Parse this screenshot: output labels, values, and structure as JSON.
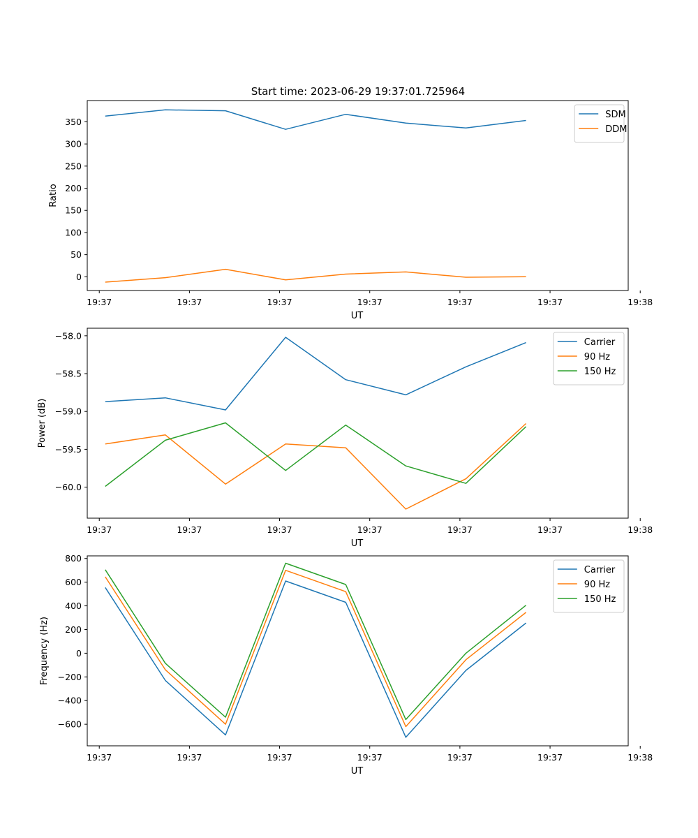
{
  "figure_title": "Start time: 2023-06-29 19:37:01.725964",
  "colors": {
    "blue": "#1f77b4",
    "orange": "#ff7f0e",
    "green": "#2ca02c"
  },
  "chart_data": [
    {
      "type": "line",
      "title": "Start time: 2023-06-29 19:37:01.725964",
      "xlabel": "UT",
      "ylabel": "Ratio",
      "x": [
        1,
        2,
        3,
        4,
        5,
        6,
        7,
        8
      ],
      "xlim": [
        0.7,
        9.7
      ],
      "xticks": [
        0.9,
        2.4,
        3.9,
        5.4,
        6.9,
        8.4,
        9.9
      ],
      "xtick_labels": [
        "19:37",
        "19:37",
        "19:37",
        "19:37",
        "19:37",
        "19:37",
        "19:38"
      ],
      "ylim": [
        -31,
        398
      ],
      "yticks": [
        0,
        50,
        100,
        150,
        200,
        250,
        300,
        350
      ],
      "ytick_labels": [
        "0",
        "50",
        "100",
        "150",
        "200",
        "250",
        "300",
        "350"
      ],
      "legend": "upper right",
      "series": [
        {
          "name": "SDM",
          "color": "#1f77b4",
          "values": [
            363,
            377,
            375,
            333,
            367,
            347,
            336,
            353
          ]
        },
        {
          "name": "DDM",
          "color": "#ff7f0e",
          "values": [
            -12,
            -2,
            17,
            -7,
            6,
            11,
            -1,
            0
          ]
        }
      ]
    },
    {
      "type": "line",
      "title": "",
      "xlabel": "UT",
      "ylabel": "Power (dB)",
      "x": [
        1,
        2,
        3,
        4,
        5,
        6,
        7,
        8
      ],
      "xlim": [
        0.7,
        9.7
      ],
      "xticks": [
        0.9,
        2.4,
        3.9,
        5.4,
        6.9,
        8.4,
        9.9
      ],
      "xtick_labels": [
        "19:37",
        "19:37",
        "19:37",
        "19:37",
        "19:37",
        "19:37",
        "19:38"
      ],
      "ylim": [
        -60.41,
        -57.9
      ],
      "yticks": [
        -60.0,
        -59.5,
        -59.0,
        -58.5,
        -58.0
      ],
      "ytick_labels": [
        "−60.0",
        "−59.5",
        "−59.0",
        "−58.5",
        "−58.0"
      ],
      "legend": "upper right",
      "series": [
        {
          "name": "Carrier",
          "color": "#1f77b4",
          "values": [
            -58.87,
            -58.82,
            -58.98,
            -58.02,
            -58.58,
            -58.78,
            -58.41,
            -58.09
          ]
        },
        {
          "name": "90 Hz",
          "color": "#ff7f0e",
          "values": [
            -59.43,
            -59.31,
            -59.96,
            -59.43,
            -59.48,
            -60.29,
            -59.89,
            -59.16
          ]
        },
        {
          "name": "150 Hz",
          "color": "#2ca02c",
          "values": [
            -59.99,
            -59.38,
            -59.15,
            -59.78,
            -59.18,
            -59.72,
            -59.95,
            -59.2
          ]
        }
      ]
    },
    {
      "type": "line",
      "title": "",
      "xlabel": "UT",
      "ylabel": "Frequency (Hz)",
      "x": [
        1,
        2,
        3,
        4,
        5,
        6,
        7,
        8
      ],
      "xlim": [
        0.7,
        9.7
      ],
      "xticks": [
        0.9,
        2.4,
        3.9,
        5.4,
        6.9,
        8.4,
        9.9
      ],
      "xtick_labels": [
        "19:37",
        "19:37",
        "19:37",
        "19:37",
        "19:37",
        "19:37",
        "19:38"
      ],
      "ylim": [
        -782,
        822
      ],
      "yticks": [
        -600,
        -400,
        -200,
        0,
        200,
        400,
        600,
        800
      ],
      "ytick_labels": [
        "−600",
        "−400",
        "−200",
        "0",
        "200",
        "400",
        "600",
        "800"
      ],
      "legend": "upper right",
      "series": [
        {
          "name": "Carrier",
          "color": "#1f77b4",
          "values": [
            555,
            -230,
            -690,
            610,
            430,
            -710,
            -145,
            255
          ]
        },
        {
          "name": "90 Hz",
          "color": "#ff7f0e",
          "values": [
            645,
            -140,
            -600,
            700,
            520,
            -620,
            -55,
            345
          ]
        },
        {
          "name": "150 Hz",
          "color": "#2ca02c",
          "values": [
            705,
            -85,
            -540,
            760,
            580,
            -560,
            0,
            405
          ]
        }
      ]
    }
  ]
}
